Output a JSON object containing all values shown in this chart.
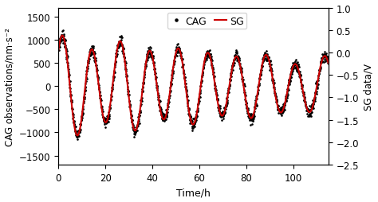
{
  "xlabel": "Time/h",
  "ylabel_left": "CAG observations/nm·s⁻²",
  "ylabel_right": "SG data/V",
  "xlim": [
    0,
    115
  ],
  "ylim_left": [
    -1700,
    1700
  ],
  "ylim_right": [
    -2.5,
    1.0
  ],
  "yticks_left": [
    -1500,
    -1000,
    -500,
    0,
    500,
    1000,
    1500
  ],
  "yticks_right": [
    -2.5,
    -2.0,
    -1.5,
    -1.0,
    -0.5,
    0,
    0.5,
    1.0
  ],
  "xticks": [
    0,
    20,
    40,
    60,
    80,
    100
  ],
  "num_points": 1500,
  "total_time": 115,
  "noise_std": 60,
  "cag_color": "black",
  "sg_color": "#cc0000",
  "cag_markersize": 1.8,
  "sg_linewidth": 1.5,
  "background_color": "#ffffff",
  "legend_fontsize": 9,
  "tick_labelsize": 8.5,
  "label_fontsize": 9
}
